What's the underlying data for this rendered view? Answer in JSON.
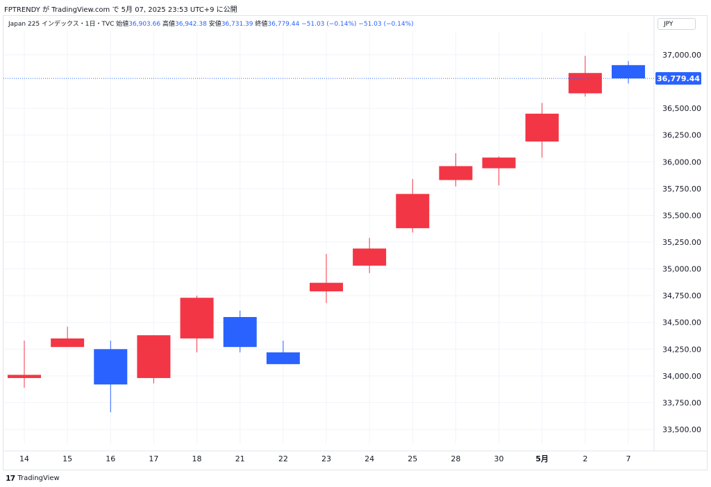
{
  "header": {
    "publish_line": "FPTRENDY が TradingView.com で 5月 07, 2025 23:53 UTC+9 に公開"
  },
  "legend": {
    "symbol": "Japan 225 インデックス・1日・TVC",
    "open_label": "始値",
    "open": "36,903.66",
    "high_label": "高値",
    "high": "36,942.38",
    "low_label": "安値",
    "low": "36,731.39",
    "close_label": "終値",
    "close": "36,779.44",
    "change": "−51.03 (−0.14%)",
    "change2": "−51.03 (−0.14%)"
  },
  "currency_label": "JPY",
  "price_label": "36,779.44",
  "footer": {
    "logo": "17",
    "brand": "TradingView"
  },
  "colors": {
    "up": "#f23645",
    "down": "#2962ff",
    "grid": "#f0f3fa",
    "text": "#131722"
  },
  "chart_data": {
    "type": "candlestick",
    "ylim": [
      33300,
      37150
    ],
    "yticks": [
      33500,
      33750,
      34000,
      34250,
      34500,
      34750,
      35000,
      35250,
      35500,
      35750,
      36000,
      36250,
      36500,
      37000
    ],
    "ytick_labels": [
      "33,500.00",
      "33,750.00",
      "34,000.00",
      "34,250.00",
      "34,500.00",
      "34,750.00",
      "35,000.00",
      "35,250.00",
      "35,500.00",
      "35,750.00",
      "36,000.00",
      "36,250.00",
      "36,500.00",
      "37,000.00"
    ],
    "x_labels": [
      "14",
      "15",
      "16",
      "17",
      "18",
      "21",
      "22",
      "23",
      "24",
      "25",
      "28",
      "30",
      "5月",
      "2",
      "7"
    ],
    "candles": [
      {
        "x": "14",
        "open": 33980,
        "high": 34330,
        "low": 33890,
        "close": 34010
      },
      {
        "x": "15",
        "open": 34270,
        "high": 34460,
        "low": 34270,
        "close": 34350
      },
      {
        "x": "16",
        "open": 34250,
        "high": 34330,
        "low": 33660,
        "close": 33920
      },
      {
        "x": "17",
        "open": 33980,
        "high": 34380,
        "low": 33930,
        "close": 34380
      },
      {
        "x": "18",
        "open": 34350,
        "high": 34750,
        "low": 34220,
        "close": 34730
      },
      {
        "x": "21",
        "open": 34550,
        "high": 34610,
        "low": 34220,
        "close": 34270
      },
      {
        "x": "22",
        "open": 34220,
        "high": 34330,
        "low": 34110,
        "close": 34110
      },
      {
        "x": "23",
        "open": 34790,
        "high": 35140,
        "low": 34680,
        "close": 34870
      },
      {
        "x": "24",
        "open": 35030,
        "high": 35290,
        "low": 34960,
        "close": 35190
      },
      {
        "x": "25",
        "open": 35380,
        "high": 35840,
        "low": 35340,
        "close": 35700
      },
      {
        "x": "28",
        "open": 35830,
        "high": 36080,
        "low": 35770,
        "close": 35960
      },
      {
        "x": "30",
        "open": 35940,
        "high": 36050,
        "low": 35780,
        "close": 36040
      },
      {
        "x": "5月",
        "open": 36190,
        "high": 36550,
        "low": 36040,
        "close": 36450
      },
      {
        "x": "2",
        "open": 36640,
        "high": 36990,
        "low": 36610,
        "close": 36830
      },
      {
        "x": "7",
        "open": 36903.66,
        "high": 36942.38,
        "low": 36731.39,
        "close": 36779.44
      }
    ],
    "last_price": 36779.44
  }
}
